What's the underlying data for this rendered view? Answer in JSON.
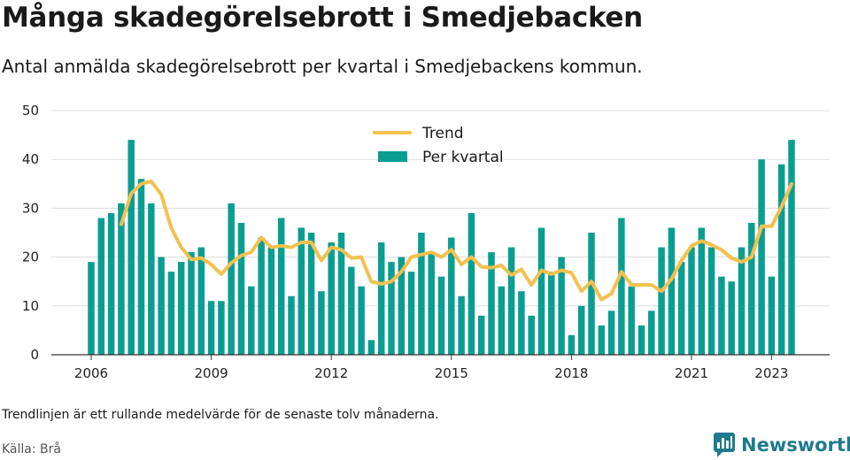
{
  "title": "Många skadegörelsebrott i Smedjebacken",
  "subtitle": "Antal anmälda skadegörelsebrott per kvartal i Smedjebackens kommun.",
  "note": "Trendlinjen är ett rullande medelvärde för de senaste tolv månaderna.",
  "source": "Källa: Brå",
  "brand": {
    "name": "Newsworthy",
    "icon": "newsworthy-chart-bubble-icon",
    "color": "#1f7a8c"
  },
  "colors": {
    "bar": "#0a9e92",
    "trend": "#f2c14e",
    "grid": "#dddddd"
  },
  "chart_data": {
    "type": "bar",
    "x_start": "2006 Q1",
    "ylim": [
      0,
      50
    ],
    "yticks": [
      "0",
      "10",
      "20",
      "30",
      "40",
      "50"
    ],
    "xticks": [
      {
        "label": "2006",
        "quarter_index": 0
      },
      {
        "label": "2009",
        "quarter_index": 12
      },
      {
        "label": "2012",
        "quarter_index": 24
      },
      {
        "label": "2015",
        "quarter_index": 36
      },
      {
        "label": "2018",
        "quarter_index": 48
      },
      {
        "label": "2021",
        "quarter_index": 60
      },
      {
        "label": "2023",
        "quarter_index": 68
      }
    ],
    "legend": {
      "placement": "top-center",
      "entries": [
        "Trend",
        "Per kvartal"
      ]
    },
    "series": [
      {
        "name": "Per kvartal",
        "type": "bar",
        "values": [
          19,
          28,
          29,
          31,
          44,
          36,
          31,
          20,
          17,
          19,
          21,
          22,
          11,
          11,
          31,
          27,
          14,
          24,
          22,
          28,
          12,
          26,
          25,
          13,
          23,
          25,
          18,
          14,
          3,
          23,
          19,
          20,
          17,
          25,
          21,
          16,
          24,
          12,
          29,
          8,
          21,
          14,
          22,
          13,
          8,
          26,
          17,
          20,
          4,
          10,
          25,
          6,
          9,
          28,
          14,
          6,
          9,
          22,
          26,
          19,
          22,
          26,
          22,
          16,
          15,
          22,
          27,
          40,
          16,
          39,
          44
        ]
      },
      {
        "name": "Trend",
        "type": "line",
        "start_index": 3,
        "values": [
          26.7,
          33.0,
          35.0,
          35.5,
          32.8,
          26.0,
          22.0,
          19.5,
          19.8,
          18.5,
          16.5,
          18.8,
          20.3,
          21.0,
          24.0,
          22.0,
          22.3,
          22.0,
          23.0,
          23.0,
          19.3,
          22.0,
          21.5,
          19.8,
          20.0,
          15.0,
          14.5,
          15.0,
          17.0,
          20.0,
          20.5,
          21.0,
          20.0,
          21.5,
          18.5,
          20.0,
          18.0,
          17.8,
          18.3,
          16.3,
          17.5,
          14.3,
          17.3,
          16.5,
          17.3,
          16.8,
          13.0,
          15.0,
          11.3,
          12.5,
          17.0,
          14.3,
          14.3,
          14.3,
          13.0,
          15.5,
          19.3,
          22.3,
          23.3,
          22.5,
          21.5,
          19.8,
          19.0,
          20.0,
          26.3,
          26.3,
          30.3,
          35.0
        ]
      }
    ]
  }
}
